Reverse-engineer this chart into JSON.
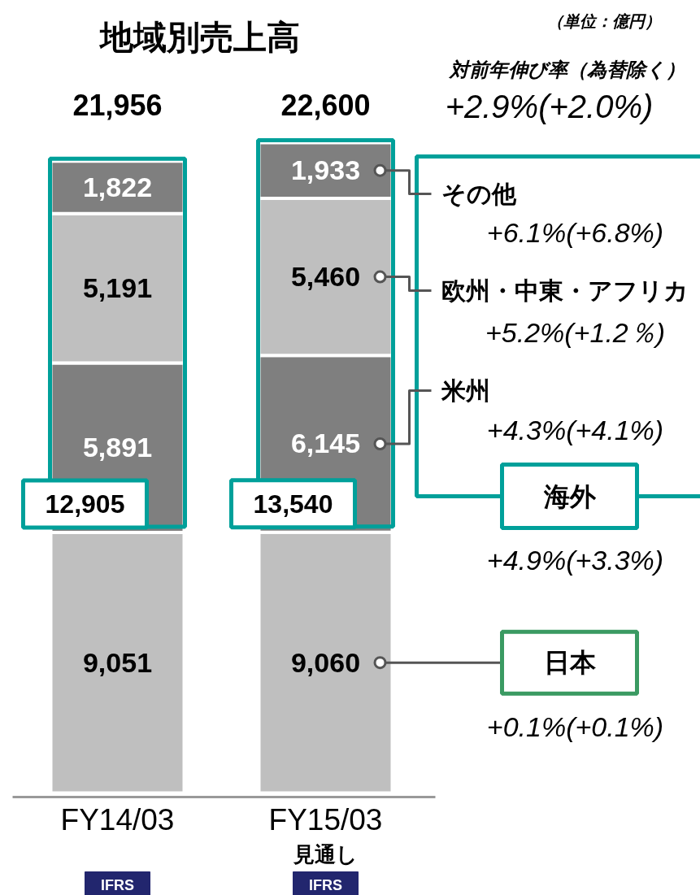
{
  "chart_data": {
    "type": "bar",
    "title": "地域別売上高",
    "categories": [
      "FY14/03",
      "FY15/03"
    ],
    "stacked": true,
    "series": [
      {
        "name": "日本",
        "color": "#bfbfbf",
        "values": [
          9051,
          9060
        ],
        "value_labels": [
          "9,051",
          "9,060"
        ]
      },
      {
        "name": "米州",
        "color": "#7f7f7f",
        "values": [
          5891,
          6145
        ],
        "value_labels": [
          "5,891",
          "6,145"
        ]
      },
      {
        "name": "欧州・中東・アフリカ",
        "color": "#bfbfbf",
        "values": [
          5191,
          5460
        ],
        "value_labels": [
          "5,191",
          "5,460"
        ]
      },
      {
        "name": "その他",
        "color": "#7f7f7f",
        "values": [
          1822,
          1933
        ],
        "value_labels": [
          "1,822",
          "1,933"
        ]
      }
    ],
    "totals": [
      "21,956",
      "22,600"
    ],
    "annotations": [
      "（単位：億円）",
      "対前年伸び率（為替除く）",
      "+2.9%(+2.0%)",
      "+6.1%(+6.8%)",
      "+5.2%(+1.2％)",
      "+4.3%(+4.1%)",
      "海外",
      "+4.9%(+3.3%)",
      "+0.1%(+0.1%)",
      "見通し",
      "12,905",
      "13,540",
      "IFRS",
      "IFRS"
    ]
  }
}
